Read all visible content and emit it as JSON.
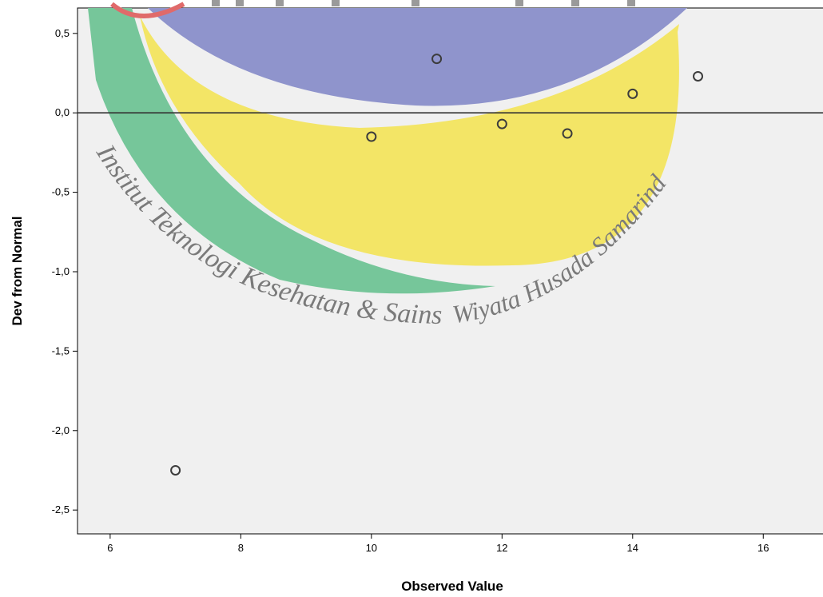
{
  "chart_data": {
    "type": "scatter",
    "title": "",
    "xlabel": "Observed Value",
    "ylabel": "Dev from Normal",
    "xlim": [
      5.5,
      17.0
    ],
    "ylim": [
      -2.65,
      0.66
    ],
    "x_ticks": [
      6,
      8,
      10,
      12,
      14,
      16
    ],
    "x_tick_labels": [
      "6",
      "8",
      "10",
      "12",
      "14",
      "16"
    ],
    "y_ticks": [
      0.5,
      0.0,
      -0.5,
      -1.0,
      -1.5,
      -2.0,
      -2.5
    ],
    "y_tick_labels": [
      "0,5",
      "0,0",
      "-0,5",
      "-1,0",
      "-1,5",
      "-2,0",
      "-2,5"
    ],
    "reference_line_y": 0.0,
    "grid": false,
    "points": [
      {
        "x": 7,
        "y": -2.25
      },
      {
        "x": 10,
        "y": -0.15
      },
      {
        "x": 11,
        "y": 0.34
      },
      {
        "x": 12,
        "y": -0.07
      },
      {
        "x": 13,
        "y": -0.13
      },
      {
        "x": 14,
        "y": 0.12
      },
      {
        "x": 15,
        "y": 0.23
      }
    ],
    "marker": "open-circle",
    "colors": {
      "plot_background": "#f0f0f0",
      "marker_stroke": "#3c3c3c",
      "reference_line": "#333333"
    }
  },
  "watermark": {
    "text_left": "Institut Teknologi Kesehatan & Sains",
    "text_right": "Wiyata Husada Samarinda",
    "colors": {
      "blue": "#8f94cc",
      "yellow": "#f3e45a",
      "green": "#76c69a",
      "red": "#e06a6a"
    }
  }
}
